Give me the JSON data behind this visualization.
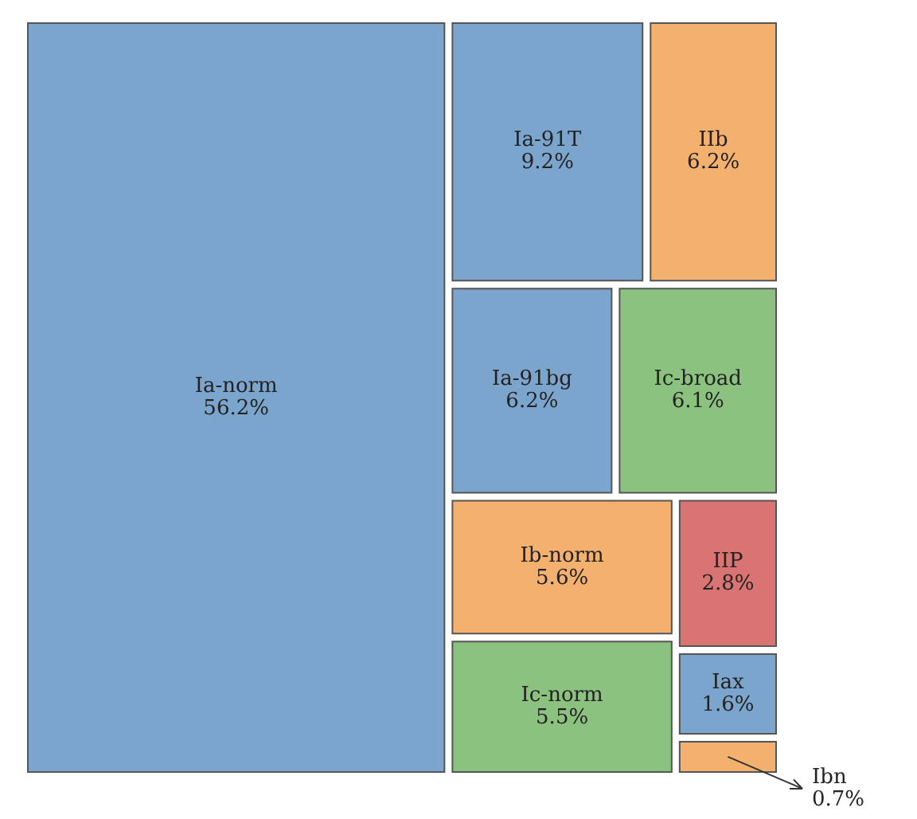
{
  "chart_data": {
    "type": "other",
    "categories": [
      "Ia-norm",
      "Ia-91T",
      "IIb",
      "Ia-91bg",
      "Ic-broad",
      "Ib-norm",
      "Ic-norm",
      "IIP",
      "Iax",
      "Ibn"
    ],
    "values": [
      56.2,
      9.2,
      6.2,
      6.2,
      6.1,
      5.6,
      5.5,
      2.8,
      1.6,
      0.7
    ],
    "value_labels": [
      "56.2%",
      "9.2%",
      "6.2%",
      "6.2%",
      "6.1%",
      "5.6%",
      "5.5%",
      "2.8%",
      "1.6%",
      "0.7%"
    ],
    "colors": [
      "#7ba5cc",
      "#7ba5cc",
      "#f4b06f",
      "#7ba5cc",
      "#8cc27f",
      "#f4b06f",
      "#8cc27f",
      "#d97473",
      "#7ba5cc",
      "#f4b06f"
    ]
  }
}
